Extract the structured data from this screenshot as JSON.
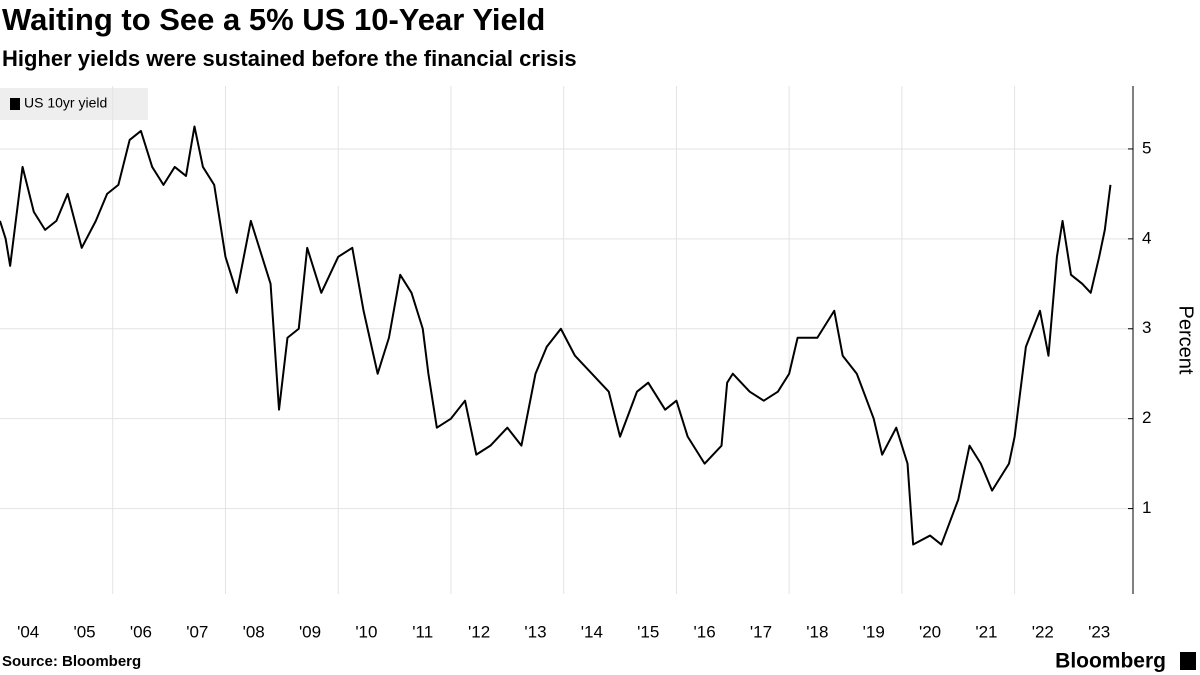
{
  "chart_data": {
    "type": "line",
    "title": "Waiting to See a 5% US 10-Year Yield",
    "subtitle": "Higher yields were sustained before the financial crisis",
    "y_label": "Percent",
    "source": "Source: Bloomberg",
    "brand": "Bloomberg",
    "legend_position": "top-left",
    "grid": true,
    "xlim": [
      2004,
      2024.1
    ],
    "ylim": [
      0.05,
      5.7
    ],
    "yticks": [
      1,
      2,
      3,
      4,
      5
    ],
    "xticks": [
      {
        "value": 2004.5,
        "label": "'04"
      },
      {
        "value": 2005.5,
        "label": "'05"
      },
      {
        "value": 2006.5,
        "label": "'06"
      },
      {
        "value": 2007.5,
        "label": "'07"
      },
      {
        "value": 2008.5,
        "label": "'08"
      },
      {
        "value": 2009.5,
        "label": "'09"
      },
      {
        "value": 2010.5,
        "label": "'10"
      },
      {
        "value": 2011.5,
        "label": "'11"
      },
      {
        "value": 2012.5,
        "label": "'12"
      },
      {
        "value": 2013.5,
        "label": "'13"
      },
      {
        "value": 2014.5,
        "label": "'14"
      },
      {
        "value": 2015.5,
        "label": "'15"
      },
      {
        "value": 2016.5,
        "label": "'16"
      },
      {
        "value": 2017.5,
        "label": "'17"
      },
      {
        "value": 2018.5,
        "label": "'18"
      },
      {
        "value": 2019.5,
        "label": "'19"
      },
      {
        "value": 2020.5,
        "label": "'20"
      },
      {
        "value": 2021.5,
        "label": "'21"
      },
      {
        "value": 2022.5,
        "label": "'22"
      },
      {
        "value": 2023.5,
        "label": "'23"
      }
    ],
    "xgrid": [
      2006,
      2008,
      2010,
      2012,
      2014,
      2016,
      2018,
      2020,
      2022
    ],
    "x": [
      2004.0,
      2004.1,
      2004.18,
      2004.4,
      2004.6,
      2004.8,
      2005.0,
      2005.2,
      2005.45,
      2005.7,
      2005.9,
      2006.1,
      2006.3,
      2006.5,
      2006.7,
      2006.9,
      2007.1,
      2007.3,
      2007.45,
      2007.6,
      2007.8,
      2008.0,
      2008.2,
      2008.45,
      2008.65,
      2008.8,
      2008.95,
      2009.1,
      2009.3,
      2009.45,
      2009.7,
      2010.0,
      2010.25,
      2010.45,
      2010.7,
      2010.9,
      2011.1,
      2011.3,
      2011.5,
      2011.6,
      2011.75,
      2012.0,
      2012.25,
      2012.45,
      2012.7,
      2013.0,
      2013.25,
      2013.5,
      2013.7,
      2013.95,
      2014.2,
      2014.5,
      2014.8,
      2015.0,
      2015.3,
      2015.5,
      2015.8,
      2016.0,
      2016.2,
      2016.5,
      2016.8,
      2016.9,
      2017.0,
      2017.3,
      2017.55,
      2017.8,
      2018.0,
      2018.15,
      2018.5,
      2018.8,
      2018.95,
      2019.2,
      2019.5,
      2019.65,
      2019.9,
      2020.1,
      2020.2,
      2020.5,
      2020.7,
      2021.0,
      2021.2,
      2021.4,
      2021.6,
      2021.9,
      2022.0,
      2022.2,
      2022.45,
      2022.6,
      2022.75,
      2022.85,
      2023.0,
      2023.2,
      2023.35,
      2023.5,
      2023.6,
      2023.7
    ],
    "series": [
      {
        "name": "US 10yr yield",
        "color": "#000000",
        "values": [
          4.2,
          4.0,
          3.7,
          4.8,
          4.3,
          4.1,
          4.2,
          4.5,
          3.9,
          4.2,
          4.5,
          4.6,
          5.1,
          5.2,
          4.8,
          4.6,
          4.8,
          4.7,
          5.25,
          4.8,
          4.6,
          3.8,
          3.4,
          4.2,
          3.8,
          3.5,
          2.1,
          2.9,
          3.0,
          3.9,
          3.4,
          3.8,
          3.9,
          3.2,
          2.5,
          2.9,
          3.6,
          3.4,
          3.0,
          2.5,
          1.9,
          2.0,
          2.2,
          1.6,
          1.7,
          1.9,
          1.7,
          2.5,
          2.8,
          3.0,
          2.7,
          2.5,
          2.3,
          1.8,
          2.3,
          2.4,
          2.1,
          2.2,
          1.8,
          1.5,
          1.7,
          2.4,
          2.5,
          2.3,
          2.2,
          2.3,
          2.5,
          2.9,
          2.9,
          3.2,
          2.7,
          2.5,
          2.0,
          1.6,
          1.9,
          1.5,
          0.6,
          0.7,
          0.6,
          1.1,
          1.7,
          1.5,
          1.2,
          1.5,
          1.8,
          2.8,
          3.2,
          2.7,
          3.8,
          4.2,
          3.6,
          3.5,
          3.4,
          3.8,
          4.1,
          4.6
        ]
      }
    ]
  }
}
